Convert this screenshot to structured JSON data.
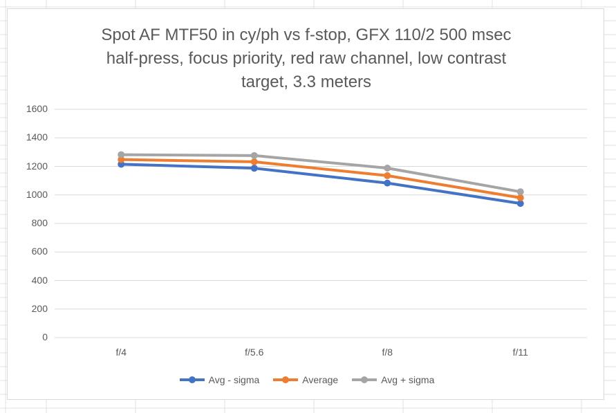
{
  "chart_data": {
    "type": "line",
    "title_lines": [
      "Spot AF MTF50 in cy/ph vs f-stop, GFX 110/2 500 msec",
      "half-press, focus priority, red raw channel, low contrast",
      "target, 3.3 meters"
    ],
    "xlabel": "",
    "ylabel": "",
    "categories": [
      "f/4",
      "f/5.6",
      "f/8",
      "f/11"
    ],
    "ylim": [
      0,
      1600
    ],
    "yticks": [
      0,
      200,
      400,
      600,
      800,
      1000,
      1200,
      1400,
      1600
    ],
    "grid": true,
    "legend_position": "bottom",
    "series": [
      {
        "name": "Avg - sigma",
        "color": "#4472c4",
        "values": [
          1215,
          1187,
          1083,
          940
        ]
      },
      {
        "name": "Average",
        "color": "#ed7d31",
        "values": [
          1248,
          1232,
          1135,
          980
        ]
      },
      {
        "name": "Avg + sigma",
        "color": "#a5a5a5",
        "values": [
          1282,
          1276,
          1188,
          1022
        ]
      }
    ]
  }
}
